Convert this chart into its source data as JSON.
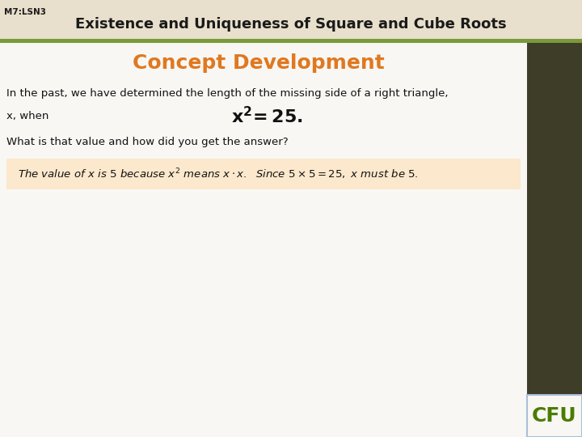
{
  "header_bg": "#e8e0cc",
  "header_text": "Existence and Uniqueness of Square and Cube Roots",
  "header_label": "M7:LSN3",
  "header_text_color": "#1a1a1a",
  "header_label_color": "#1a1a1a",
  "green_bar_color": "#7a9a3a",
  "title_text": "Concept Development",
  "title_color": "#e07820",
  "body_line1": "In the past, we have determined the length of the missing side of a right triangle,",
  "body_line2": "x, when",
  "body_line3": "What is that value and how did you get the answer?",
  "answer_bg": "#fce8cc",
  "sidebar_dark": "#3d3d28",
  "sidebar_green": "#8dc63f",
  "cfu_text": "CFU",
  "cfu_color": "#4a7c00",
  "cfu_border": "#a8c0d8",
  "content_bg": "#f4f2ee",
  "white_content_bg": "#f8f7f4"
}
